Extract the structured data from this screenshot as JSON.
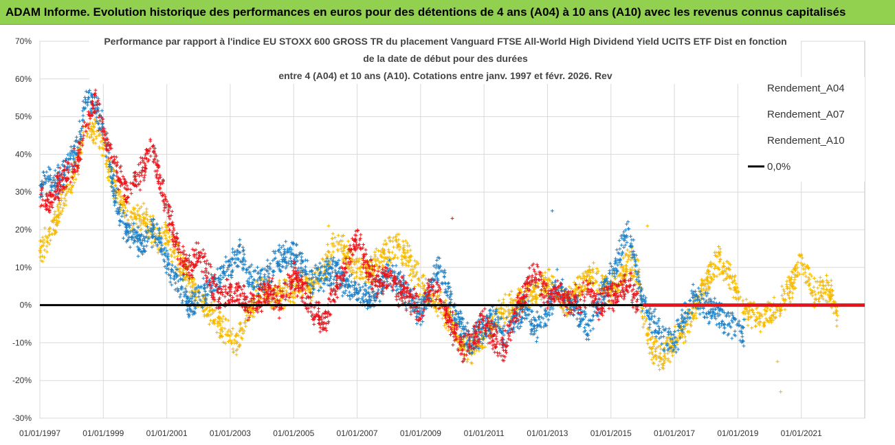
{
  "header": {
    "title": "ADAM Informe. Evolution historique des performances en euros pour des détentions de 4 ans (A04) à 10 ans (A10) avec les revenus connus capitalisés"
  },
  "chart_data": {
    "type": "scatter",
    "title_lines": [
      "Performance par rapport à l'indice EU STOXX 600 GROSS TR  du placement Vanguard FTSE All-World High Dividend Yield UCITS ETF Dist en fonction",
      "de la date de début pour des durées",
      "entre 4 (A04) et 10 ans (A10).  Cotations entre janv. 1997 et févr. 2026. Rev"
    ],
    "ylim": [
      -30,
      70
    ],
    "xlim": [
      1997.0,
      2023.0
    ],
    "y_ticks": [
      70,
      60,
      50,
      40,
      30,
      20,
      10,
      0,
      -10,
      -20,
      -30
    ],
    "y_tick_labels": [
      "70%",
      "60%",
      "50%",
      "40%",
      "30%",
      "20%",
      "10%",
      "0%",
      "-10%",
      "-20%",
      "-30%"
    ],
    "x_ticks": [
      1997,
      1999,
      2001,
      2003,
      2005,
      2007,
      2009,
      2011,
      2013,
      2015,
      2017,
      2019,
      2021
    ],
    "x_tick_labels": [
      "01/01/1997",
      "01/01/1999",
      "01/01/2001",
      "01/01/2003",
      "01/01/2005",
      "01/01/2007",
      "01/01/2009",
      "01/01/2011",
      "01/01/2013",
      "01/01/2015",
      "01/01/2017",
      "01/01/2019",
      "01/01/2021"
    ],
    "legend_position": "top-right",
    "series": [
      {
        "name": "Rendement_A04",
        "color": "#f5b800",
        "points": [
          [
            1997.0,
            14
          ],
          [
            1997.25,
            18
          ],
          [
            1997.5,
            22
          ],
          [
            1997.75,
            28
          ],
          [
            1998.0,
            32
          ],
          [
            1998.25,
            40
          ],
          [
            1998.5,
            48
          ],
          [
            1998.75,
            46
          ],
          [
            1999.0,
            42
          ],
          [
            1999.25,
            34
          ],
          [
            1999.5,
            28
          ],
          [
            1999.75,
            24
          ],
          [
            2000.0,
            22
          ],
          [
            2000.25,
            24
          ],
          [
            2000.5,
            20
          ],
          [
            2000.75,
            17
          ],
          [
            2001.0,
            18
          ],
          [
            2001.25,
            14
          ],
          [
            2001.5,
            10
          ],
          [
            2001.75,
            6
          ],
          [
            2002.0,
            2
          ],
          [
            2002.25,
            -1
          ],
          [
            2002.5,
            -3
          ],
          [
            2002.75,
            -6
          ],
          [
            2003.0,
            -9
          ],
          [
            2003.2,
            -11
          ],
          [
            2003.4,
            -6
          ],
          [
            2003.6,
            -1
          ],
          [
            2003.8,
            2
          ],
          [
            2004.0,
            4
          ],
          [
            2004.3,
            2
          ],
          [
            2004.6,
            3
          ],
          [
            2005.0,
            4
          ],
          [
            2005.3,
            6
          ],
          [
            2005.6,
            5
          ],
          [
            2006.0,
            10
          ],
          [
            2006.3,
            18
          ],
          [
            2006.6,
            14
          ],
          [
            2007.0,
            10
          ],
          [
            2007.3,
            8
          ],
          [
            2007.6,
            11
          ],
          [
            2008.0,
            14
          ],
          [
            2008.3,
            16
          ],
          [
            2008.6,
            12
          ],
          [
            2009.0,
            6
          ],
          [
            2009.3,
            2
          ],
          [
            2009.6,
            0
          ],
          [
            2010.0,
            -4
          ],
          [
            2010.3,
            -10
          ],
          [
            2010.6,
            -12
          ],
          [
            2011.0,
            -8
          ],
          [
            2011.3,
            -4
          ],
          [
            2011.6,
            -1
          ],
          [
            2012.0,
            0
          ],
          [
            2012.3,
            2
          ],
          [
            2012.6,
            4
          ],
          [
            2013.0,
            6
          ],
          [
            2013.3,
            3
          ],
          [
            2013.6,
            1
          ],
          [
            2014.0,
            4
          ],
          [
            2014.3,
            8
          ],
          [
            2014.6,
            6
          ],
          [
            2015.0,
            4
          ],
          [
            2015.3,
            8
          ],
          [
            2015.6,
            12
          ],
          [
            2015.85,
            9
          ],
          [
            2016.0,
            -4
          ],
          [
            2016.3,
            -12
          ],
          [
            2016.6,
            -14
          ],
          [
            2017.0,
            -9
          ],
          [
            2017.3,
            -6
          ],
          [
            2017.6,
            -2
          ],
          [
            2018.0,
            6
          ],
          [
            2018.2,
            9
          ],
          [
            2018.4,
            12
          ],
          [
            2018.7,
            8
          ],
          [
            2019.0,
            2
          ],
          [
            2019.3,
            -2
          ],
          [
            2019.6,
            -4
          ],
          [
            2020.0,
            -2
          ],
          [
            2020.3,
            0
          ],
          [
            2020.6,
            4
          ],
          [
            2021.0,
            12
          ],
          [
            2021.2,
            8
          ],
          [
            2021.4,
            3
          ],
          [
            2021.7,
            5
          ],
          [
            2022.0,
            2
          ],
          [
            2022.15,
            -4
          ]
        ]
      },
      {
        "name": "Rendement_A07",
        "color": "#1f7fc4",
        "points": [
          [
            1997.0,
            30
          ],
          [
            1997.25,
            34
          ],
          [
            1997.5,
            32
          ],
          [
            1997.75,
            36
          ],
          [
            1998.0,
            38
          ],
          [
            1998.25,
            45
          ],
          [
            1998.5,
            56
          ],
          [
            1998.75,
            52
          ],
          [
            1999.0,
            48
          ],
          [
            1999.25,
            34
          ],
          [
            1999.5,
            24
          ],
          [
            1999.75,
            20
          ],
          [
            2000.0,
            18
          ],
          [
            2000.25,
            16
          ],
          [
            2000.5,
            20
          ],
          [
            2000.75,
            18
          ],
          [
            2001.0,
            12
          ],
          [
            2001.25,
            8
          ],
          [
            2001.5,
            4
          ],
          [
            2001.75,
            0
          ],
          [
            2002.0,
            2
          ],
          [
            2002.3,
            4
          ],
          [
            2002.6,
            6
          ],
          [
            2003.0,
            10
          ],
          [
            2003.3,
            14
          ],
          [
            2003.6,
            8
          ],
          [
            2004.0,
            6
          ],
          [
            2004.3,
            10
          ],
          [
            2004.6,
            12
          ],
          [
            2005.0,
            14
          ],
          [
            2005.3,
            10
          ],
          [
            2005.6,
            6
          ],
          [
            2006.0,
            8
          ],
          [
            2006.3,
            10
          ],
          [
            2006.6,
            6
          ],
          [
            2007.0,
            4
          ],
          [
            2007.3,
            2
          ],
          [
            2007.6,
            4
          ],
          [
            2008.0,
            8
          ],
          [
            2008.3,
            6
          ],
          [
            2008.6,
            2
          ],
          [
            2009.0,
            -2
          ],
          [
            2009.3,
            4
          ],
          [
            2009.6,
            10
          ],
          [
            2010.0,
            0
          ],
          [
            2010.3,
            -6
          ],
          [
            2010.6,
            -10
          ],
          [
            2011.0,
            -6
          ],
          [
            2011.3,
            -2
          ],
          [
            2011.6,
            -8
          ],
          [
            2012.0,
            -4
          ],
          [
            2012.3,
            0
          ],
          [
            2012.6,
            -6
          ],
          [
            2013.0,
            -2
          ],
          [
            2013.3,
            6
          ],
          [
            2013.6,
            2
          ],
          [
            2014.0,
            -2
          ],
          [
            2014.3,
            -6
          ],
          [
            2014.6,
            0
          ],
          [
            2015.0,
            8
          ],
          [
            2015.3,
            14
          ],
          [
            2015.5,
            20
          ],
          [
            2015.7,
            14
          ],
          [
            2016.0,
            0
          ],
          [
            2016.3,
            -4
          ],
          [
            2016.6,
            -8
          ],
          [
            2017.0,
            -10
          ],
          [
            2017.3,
            -4
          ],
          [
            2017.6,
            2
          ],
          [
            2018.0,
            0
          ],
          [
            2018.3,
            -2
          ],
          [
            2018.6,
            -4
          ],
          [
            2019.0,
            -6
          ],
          [
            2019.2,
            -8
          ]
        ]
      },
      {
        "name": "Rendement_A10",
        "color": "#e8141b",
        "points": [
          [
            1997.0,
            30
          ],
          [
            1997.25,
            27
          ],
          [
            1997.5,
            30
          ],
          [
            1997.75,
            34
          ],
          [
            1998.0,
            36
          ],
          [
            1998.25,
            40
          ],
          [
            1998.5,
            50
          ],
          [
            1998.75,
            53
          ],
          [
            1999.0,
            46
          ],
          [
            1999.25,
            40
          ],
          [
            1999.5,
            34
          ],
          [
            1999.75,
            30
          ],
          [
            2000.0,
            32
          ],
          [
            2000.25,
            36
          ],
          [
            2000.5,
            42
          ],
          [
            2000.75,
            34
          ],
          [
            2001.0,
            26
          ],
          [
            2001.25,
            18
          ],
          [
            2001.5,
            12
          ],
          [
            2001.75,
            10
          ],
          [
            2002.0,
            14
          ],
          [
            2002.3,
            8
          ],
          [
            2002.6,
            2
          ],
          [
            2003.0,
            4
          ],
          [
            2003.3,
            2
          ],
          [
            2003.6,
            0
          ],
          [
            2004.0,
            2
          ],
          [
            2004.3,
            4
          ],
          [
            2004.6,
            0
          ],
          [
            2005.0,
            8
          ],
          [
            2005.3,
            4
          ],
          [
            2005.6,
            -2
          ],
          [
            2006.0,
            -4
          ],
          [
            2006.3,
            4
          ],
          [
            2006.6,
            10
          ],
          [
            2007.0,
            18
          ],
          [
            2007.3,
            10
          ],
          [
            2007.6,
            6
          ],
          [
            2008.0,
            8
          ],
          [
            2008.3,
            4
          ],
          [
            2008.6,
            2
          ],
          [
            2009.0,
            -2
          ],
          [
            2009.3,
            4
          ],
          [
            2009.6,
            2
          ],
          [
            2010.0,
            -6
          ],
          [
            2010.3,
            -12
          ],
          [
            2010.6,
            -10
          ],
          [
            2011.0,
            -4
          ],
          [
            2011.3,
            -8
          ],
          [
            2011.6,
            -12
          ],
          [
            2012.0,
            -2
          ],
          [
            2012.3,
            4
          ],
          [
            2012.6,
            8
          ],
          [
            2013.0,
            2
          ],
          [
            2013.3,
            4
          ],
          [
            2013.6,
            0
          ],
          [
            2014.0,
            2
          ],
          [
            2014.3,
            4
          ],
          [
            2014.6,
            0
          ],
          [
            2015.0,
            2
          ],
          [
            2015.3,
            4
          ],
          [
            2015.6,
            6
          ],
          [
            2015.85,
            0
          ]
        ]
      }
    ],
    "outliers": [
      {
        "series": "Rendement_A04",
        "x": 2006.1,
        "y": 21
      },
      {
        "series": "Rendement_A04",
        "x": 2016.15,
        "y": 21
      },
      {
        "series": "Rendement_A04",
        "x": 2020.25,
        "y": -15
      },
      {
        "series": "Rendement_A04",
        "x": 2020.35,
        "y": -23
      },
      {
        "series": "Rendement_A07",
        "x": 2013.15,
        "y": 25
      },
      {
        "series": "Rendement_A10",
        "x": 2010.0,
        "y": 23
      }
    ],
    "reference_lines": [
      {
        "name": "0,0%",
        "y": 0,
        "color": "#000000"
      }
    ],
    "zero_segment": {
      "series": "Rendement_A10",
      "from": 2016.0,
      "to": 2023.0,
      "y": 0
    }
  }
}
